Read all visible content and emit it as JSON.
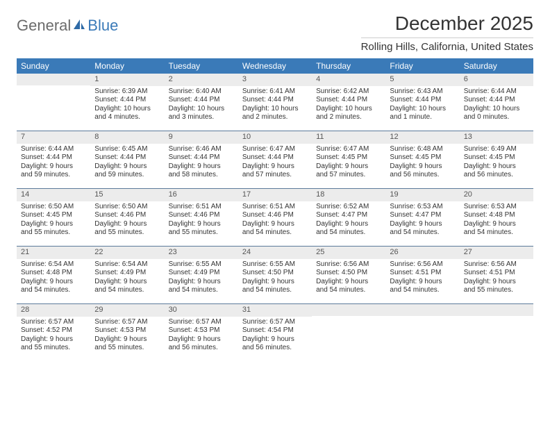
{
  "brand": {
    "text1": "General",
    "text2": "Blue",
    "icon_color": "#2e6aa6"
  },
  "title": "December 2025",
  "location": "Rolling Hills, California, United States",
  "header_bg": "#3a7ab8",
  "daynum_bg": "#ececec",
  "week_border": "#5b7a9a",
  "days_of_week": [
    "Sunday",
    "Monday",
    "Tuesday",
    "Wednesday",
    "Thursday",
    "Friday",
    "Saturday"
  ],
  "weeks": [
    [
      {
        "n": "",
        "sr": "",
        "ss": "",
        "dl1": "",
        "dl2": ""
      },
      {
        "n": "1",
        "sr": "Sunrise: 6:39 AM",
        "ss": "Sunset: 4:44 PM",
        "dl1": "Daylight: 10 hours",
        "dl2": "and 4 minutes."
      },
      {
        "n": "2",
        "sr": "Sunrise: 6:40 AM",
        "ss": "Sunset: 4:44 PM",
        "dl1": "Daylight: 10 hours",
        "dl2": "and 3 minutes."
      },
      {
        "n": "3",
        "sr": "Sunrise: 6:41 AM",
        "ss": "Sunset: 4:44 PM",
        "dl1": "Daylight: 10 hours",
        "dl2": "and 2 minutes."
      },
      {
        "n": "4",
        "sr": "Sunrise: 6:42 AM",
        "ss": "Sunset: 4:44 PM",
        "dl1": "Daylight: 10 hours",
        "dl2": "and 2 minutes."
      },
      {
        "n": "5",
        "sr": "Sunrise: 6:43 AM",
        "ss": "Sunset: 4:44 PM",
        "dl1": "Daylight: 10 hours",
        "dl2": "and 1 minute."
      },
      {
        "n": "6",
        "sr": "Sunrise: 6:44 AM",
        "ss": "Sunset: 4:44 PM",
        "dl1": "Daylight: 10 hours",
        "dl2": "and 0 minutes."
      }
    ],
    [
      {
        "n": "7",
        "sr": "Sunrise: 6:44 AM",
        "ss": "Sunset: 4:44 PM",
        "dl1": "Daylight: 9 hours",
        "dl2": "and 59 minutes."
      },
      {
        "n": "8",
        "sr": "Sunrise: 6:45 AM",
        "ss": "Sunset: 4:44 PM",
        "dl1": "Daylight: 9 hours",
        "dl2": "and 59 minutes."
      },
      {
        "n": "9",
        "sr": "Sunrise: 6:46 AM",
        "ss": "Sunset: 4:44 PM",
        "dl1": "Daylight: 9 hours",
        "dl2": "and 58 minutes."
      },
      {
        "n": "10",
        "sr": "Sunrise: 6:47 AM",
        "ss": "Sunset: 4:44 PM",
        "dl1": "Daylight: 9 hours",
        "dl2": "and 57 minutes."
      },
      {
        "n": "11",
        "sr": "Sunrise: 6:47 AM",
        "ss": "Sunset: 4:45 PM",
        "dl1": "Daylight: 9 hours",
        "dl2": "and 57 minutes."
      },
      {
        "n": "12",
        "sr": "Sunrise: 6:48 AM",
        "ss": "Sunset: 4:45 PM",
        "dl1": "Daylight: 9 hours",
        "dl2": "and 56 minutes."
      },
      {
        "n": "13",
        "sr": "Sunrise: 6:49 AM",
        "ss": "Sunset: 4:45 PM",
        "dl1": "Daylight: 9 hours",
        "dl2": "and 56 minutes."
      }
    ],
    [
      {
        "n": "14",
        "sr": "Sunrise: 6:50 AM",
        "ss": "Sunset: 4:45 PM",
        "dl1": "Daylight: 9 hours",
        "dl2": "and 55 minutes."
      },
      {
        "n": "15",
        "sr": "Sunrise: 6:50 AM",
        "ss": "Sunset: 4:46 PM",
        "dl1": "Daylight: 9 hours",
        "dl2": "and 55 minutes."
      },
      {
        "n": "16",
        "sr": "Sunrise: 6:51 AM",
        "ss": "Sunset: 4:46 PM",
        "dl1": "Daylight: 9 hours",
        "dl2": "and 55 minutes."
      },
      {
        "n": "17",
        "sr": "Sunrise: 6:51 AM",
        "ss": "Sunset: 4:46 PM",
        "dl1": "Daylight: 9 hours",
        "dl2": "and 54 minutes."
      },
      {
        "n": "18",
        "sr": "Sunrise: 6:52 AM",
        "ss": "Sunset: 4:47 PM",
        "dl1": "Daylight: 9 hours",
        "dl2": "and 54 minutes."
      },
      {
        "n": "19",
        "sr": "Sunrise: 6:53 AM",
        "ss": "Sunset: 4:47 PM",
        "dl1": "Daylight: 9 hours",
        "dl2": "and 54 minutes."
      },
      {
        "n": "20",
        "sr": "Sunrise: 6:53 AM",
        "ss": "Sunset: 4:48 PM",
        "dl1": "Daylight: 9 hours",
        "dl2": "and 54 minutes."
      }
    ],
    [
      {
        "n": "21",
        "sr": "Sunrise: 6:54 AM",
        "ss": "Sunset: 4:48 PM",
        "dl1": "Daylight: 9 hours",
        "dl2": "and 54 minutes."
      },
      {
        "n": "22",
        "sr": "Sunrise: 6:54 AM",
        "ss": "Sunset: 4:49 PM",
        "dl1": "Daylight: 9 hours",
        "dl2": "and 54 minutes."
      },
      {
        "n": "23",
        "sr": "Sunrise: 6:55 AM",
        "ss": "Sunset: 4:49 PM",
        "dl1": "Daylight: 9 hours",
        "dl2": "and 54 minutes."
      },
      {
        "n": "24",
        "sr": "Sunrise: 6:55 AM",
        "ss": "Sunset: 4:50 PM",
        "dl1": "Daylight: 9 hours",
        "dl2": "and 54 minutes."
      },
      {
        "n": "25",
        "sr": "Sunrise: 6:56 AM",
        "ss": "Sunset: 4:50 PM",
        "dl1": "Daylight: 9 hours",
        "dl2": "and 54 minutes."
      },
      {
        "n": "26",
        "sr": "Sunrise: 6:56 AM",
        "ss": "Sunset: 4:51 PM",
        "dl1": "Daylight: 9 hours",
        "dl2": "and 54 minutes."
      },
      {
        "n": "27",
        "sr": "Sunrise: 6:56 AM",
        "ss": "Sunset: 4:51 PM",
        "dl1": "Daylight: 9 hours",
        "dl2": "and 55 minutes."
      }
    ],
    [
      {
        "n": "28",
        "sr": "Sunrise: 6:57 AM",
        "ss": "Sunset: 4:52 PM",
        "dl1": "Daylight: 9 hours",
        "dl2": "and 55 minutes."
      },
      {
        "n": "29",
        "sr": "Sunrise: 6:57 AM",
        "ss": "Sunset: 4:53 PM",
        "dl1": "Daylight: 9 hours",
        "dl2": "and 55 minutes."
      },
      {
        "n": "30",
        "sr": "Sunrise: 6:57 AM",
        "ss": "Sunset: 4:53 PM",
        "dl1": "Daylight: 9 hours",
        "dl2": "and 56 minutes."
      },
      {
        "n": "31",
        "sr": "Sunrise: 6:57 AM",
        "ss": "Sunset: 4:54 PM",
        "dl1": "Daylight: 9 hours",
        "dl2": "and 56 minutes."
      },
      {
        "n": "",
        "sr": "",
        "ss": "",
        "dl1": "",
        "dl2": ""
      },
      {
        "n": "",
        "sr": "",
        "ss": "",
        "dl1": "",
        "dl2": ""
      },
      {
        "n": "",
        "sr": "",
        "ss": "",
        "dl1": "",
        "dl2": ""
      }
    ]
  ]
}
